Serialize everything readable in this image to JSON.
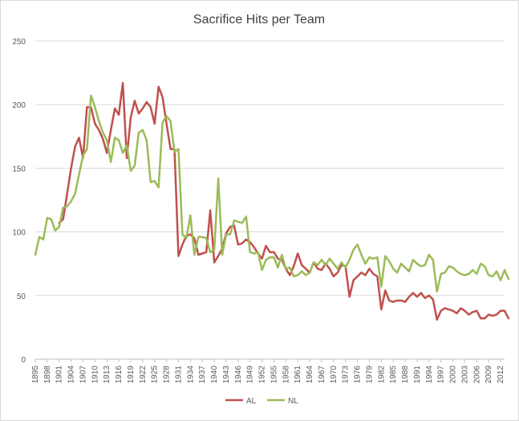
{
  "chart_data": {
    "type": "line",
    "title": "Sacrifice Hits per Team",
    "xlabel": "",
    "ylabel": "",
    "ylim": [
      0,
      250
    ],
    "yticks": [
      0,
      50,
      100,
      150,
      200,
      250
    ],
    "x_start": 1895,
    "x_end": 2013,
    "xtick_labels": [
      "1895",
      "1898",
      "1901",
      "1904",
      "1907",
      "1910",
      "1913",
      "1916",
      "1919",
      "1922",
      "1925",
      "1928",
      "1931",
      "1934",
      "1937",
      "1940",
      "1943",
      "1946",
      "1949",
      "1952",
      "1955",
      "1958",
      "1961",
      "1964",
      "1967",
      "1970",
      "1973",
      "1976",
      "1979",
      "1982",
      "1985",
      "1988",
      "1991",
      "1994",
      "1997",
      "2000",
      "2003",
      "2006",
      "2009",
      "2012"
    ],
    "grid": true,
    "legend": "bottom",
    "series": [
      {
        "name": "AL",
        "color": "#c0504d",
        "start_year": 1901,
        "values": [
          107,
          110,
          130,
          150,
          167,
          174,
          158,
          198,
          198,
          185,
          180,
          173,
          162,
          180,
          197,
          192,
          217,
          158,
          190,
          203,
          193,
          197,
          202,
          198,
          185,
          214,
          206,
          185,
          165,
          165,
          81,
          90,
          97,
          98,
          95,
          82,
          83,
          84,
          117,
          76,
          81,
          87,
          99,
          104,
          105,
          90,
          91,
          94,
          92,
          88,
          83,
          79,
          89,
          84,
          84,
          79,
          78,
          71,
          66,
          73,
          83,
          74,
          71,
          68,
          76,
          71,
          70,
          75,
          71,
          65,
          68,
          74,
          73,
          49,
          62,
          65,
          68,
          66,
          71,
          67,
          65,
          39,
          54,
          46,
          45,
          46,
          46,
          45,
          49,
          52,
          49,
          52,
          48,
          50,
          47,
          31,
          38,
          40,
          39,
          38,
          36,
          40,
          38,
          35,
          37,
          38,
          32,
          32,
          35,
          34,
          35,
          38,
          38,
          32
        ]
      },
      {
        "name": "NL",
        "color": "#9bbb59",
        "start_year": 1895,
        "values": [
          82,
          96,
          94,
          111,
          110,
          101,
          104,
          119,
          120,
          124,
          130,
          145,
          160,
          165,
          207,
          198,
          187,
          178,
          172,
          155,
          174,
          172,
          162,
          168,
          148,
          152,
          178,
          180,
          172,
          139,
          140,
          135,
          186,
          191,
          187,
          163,
          165,
          98,
          95,
          113,
          82,
          96,
          96,
          95,
          84,
          86,
          142,
          82,
          98,
          98,
          109,
          108,
          107,
          112,
          84,
          83,
          84,
          70,
          78,
          80,
          80,
          72,
          82,
          71,
          72,
          65,
          66,
          69,
          66,
          68,
          76,
          74,
          78,
          74,
          79,
          75,
          71,
          76,
          72,
          78,
          86,
          90,
          82,
          75,
          80,
          79,
          80,
          57,
          81,
          77,
          71,
          68,
          75,
          72,
          69,
          78,
          75,
          73,
          74,
          82,
          78,
          53,
          67,
          68,
          73,
          72,
          69,
          67,
          66,
          67,
          70,
          67,
          75,
          73,
          66,
          65,
          69,
          62,
          70,
          63
        ]
      }
    ]
  }
}
